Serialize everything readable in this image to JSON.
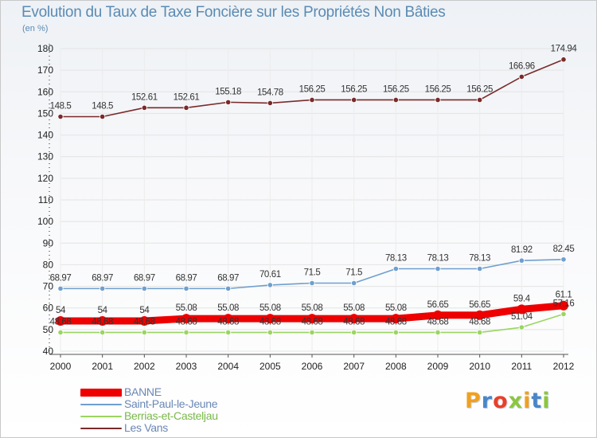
{
  "title": "Evolution du Taux de Taxe Foncière sur les Propriétés Non Bâties",
  "unit": "(en %)",
  "logo_text": "Proxiti",
  "logo_colors": [
    "#f0a020",
    "#4a86c8",
    "#e8402a",
    "#8cc63f",
    "#f0a020",
    "#4a86c8",
    "#8cc63f"
  ],
  "chart_data": {
    "type": "line",
    "title": "Evolution du Taux de Taxe Foncière sur les Propriétés Non Bâties",
    "ylabel": "(en %)",
    "xlabel": "",
    "categories": [
      "2000",
      "2001",
      "2002",
      "2003",
      "2004",
      "2005",
      "2006",
      "2007",
      "2008",
      "2009",
      "2010",
      "2011",
      "2012"
    ],
    "y_ticks": [
      "40",
      "50",
      "60",
      "70",
      "80",
      "90",
      "100",
      "110",
      "120",
      "130",
      "140",
      "150",
      "160",
      "170",
      "180"
    ],
    "y_tick_values": [
      40,
      50,
      60,
      70,
      80,
      90,
      100,
      110,
      120,
      130,
      140,
      150,
      160,
      170,
      180
    ],
    "ylim": [
      40,
      180
    ],
    "grid": true,
    "legend_position": "bottom-left",
    "series": [
      {
        "name": "BANNE",
        "color": "#ee0000",
        "values": [
          54,
          54,
          54,
          55.08,
          55.08,
          55.08,
          55.08,
          55.08,
          55.08,
          56.65,
          56.65,
          59.4,
          61.1
        ],
        "labels": [
          "54",
          "54",
          "54",
          "55.08",
          "55.08",
          "55.08",
          "55.08",
          "55.08",
          "55.08",
          "56.65",
          "56.65",
          "59.4",
          "61.1"
        ]
      },
      {
        "name": "Saint-Paul-le-Jeune",
        "color": "#6f9fcf",
        "values": [
          68.97,
          68.97,
          68.97,
          68.97,
          68.97,
          70.61,
          71.5,
          71.5,
          78.13,
          78.13,
          78.13,
          81.92,
          82.45
        ],
        "labels": [
          "68.97",
          "68.97",
          "68.97",
          "68.97",
          "68.97",
          "70.61",
          "71.5",
          "71.5",
          "78.13",
          "78.13",
          "78.13",
          "81.92",
          "82.45"
        ]
      },
      {
        "name": "Berrias-et-Casteljau",
        "color": "#9ad660",
        "values": [
          48.68,
          48.68,
          48.68,
          48.68,
          48.68,
          48.68,
          48.68,
          48.68,
          48.68,
          48.68,
          48.68,
          51.04,
          57.16
        ],
        "labels": [
          "48.68",
          "48.68",
          "48.68",
          "48.68",
          "48.68",
          "48.68",
          "48.68",
          "48.68",
          "48.68",
          "48.68",
          "48.68",
          "51.04",
          "57.16"
        ]
      },
      {
        "name": "Les Vans",
        "color": "#7a2a2a",
        "values": [
          148.5,
          148.5,
          152.61,
          152.61,
          155.18,
          154.78,
          156.25,
          156.25,
          156.25,
          156.25,
          156.25,
          166.96,
          174.94
        ],
        "labels": [
          "148.5",
          "148.5",
          "152.61",
          "152.61",
          "155.18",
          "154.78",
          "156.25",
          "156.25",
          "156.25",
          "156.25",
          "156.25",
          "166.96",
          "174.94"
        ]
      }
    ]
  }
}
